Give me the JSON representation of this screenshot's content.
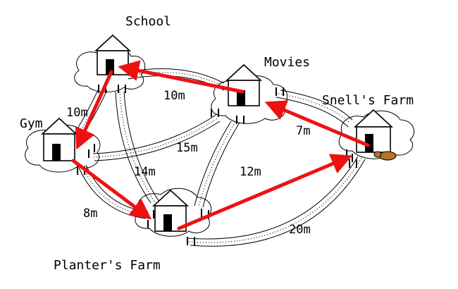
{
  "nodes": {
    "school": "School",
    "movies": "Movies",
    "snells_farm": "Snell's Farm",
    "gym": "Gym",
    "planters_farm": "Planter's Farm"
  },
  "edges": {
    "school_movies": "10m",
    "school_gym": "10m",
    "movies_snell": "7m",
    "gym_movies": "15m",
    "school_planter": "14m",
    "movies_planter": "12m",
    "gym_planter": "8m",
    "planter_snell": "20m"
  },
  "path_color": "#ee1111"
}
